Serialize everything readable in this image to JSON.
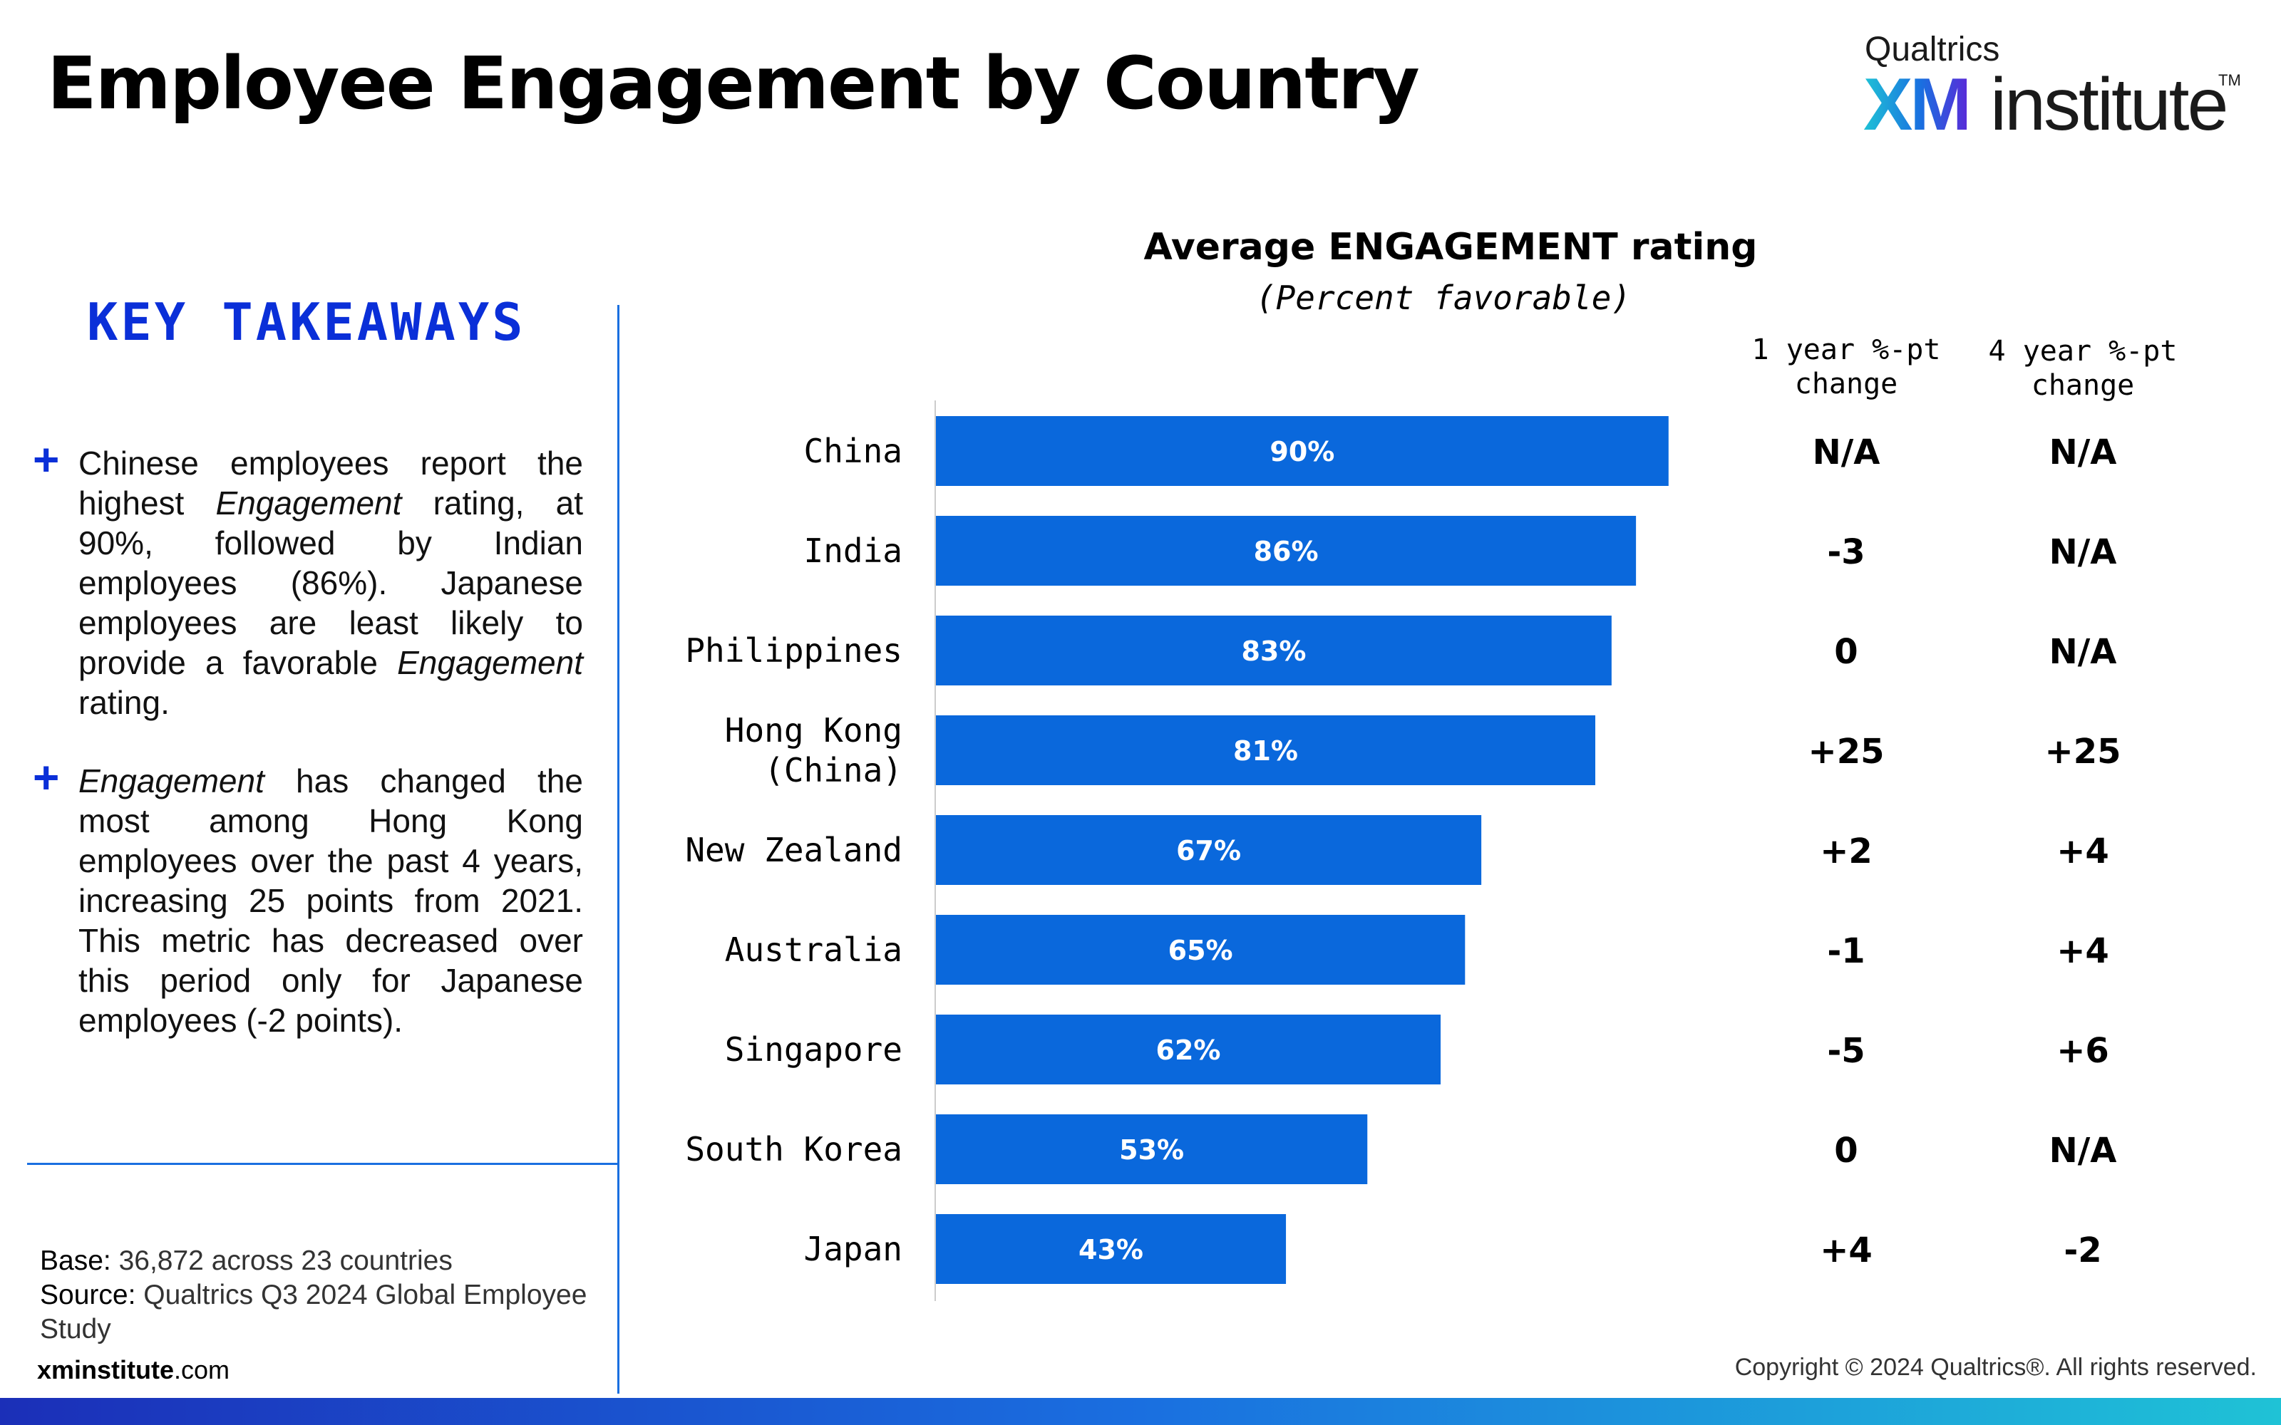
{
  "page": {
    "title": "Employee Engagement by Country",
    "logo": {
      "brand": "Qualtrics",
      "xm": "XM",
      "institute": "institute",
      "tm": "TM"
    },
    "colors": {
      "bar": "#0a68dc",
      "accent": "#0a2fd8",
      "line": "#1a6fe0"
    }
  },
  "takeaways": {
    "heading": "KEY TAKEAWAYS",
    "bullets": [
      {
        "parts": [
          "Chinese employees report the highest ",
          "Engagement",
          " rating, at 90%, followed by Indian employees (86%). Japanese employees are least likely to provide a favorable ",
          "Engagement",
          " rating."
        ]
      },
      {
        "parts": [
          "",
          "Engagement",
          " has changed the most among Hong Kong employees over the past 4 years, increasing 25 points from 2021. This metric has decreased over this period only for Japanese employees (-2 points)."
        ]
      }
    ]
  },
  "footer": {
    "base_label": "Base:",
    "base_value": " 36,872 across 23 countries",
    "source_label": "Source:",
    "source_value": " Qualtrics Q3 2024 Global Employee Study",
    "site_bold": "xminstitute",
    "site_rest": ".com",
    "copyright": "Copyright © 2024 Qualtrics®. All rights reserved."
  },
  "chart_data": {
    "type": "bar",
    "orientation": "horizontal",
    "title": "Average ENGAGEMENT rating",
    "subtitle": "(Percent favorable)",
    "categories": [
      "China",
      "India",
      "Philippines",
      "Hong Kong\n(China)",
      "New Zealand",
      "Australia",
      "Singapore",
      "South Korea",
      "Japan"
    ],
    "values": [
      90,
      86,
      83,
      81,
      67,
      65,
      62,
      53,
      43
    ],
    "value_labels": [
      "90%",
      "86%",
      "83%",
      "81%",
      "67%",
      "65%",
      "62%",
      "53%",
      "43%"
    ],
    "xlim": [
      0,
      100
    ],
    "grid": false,
    "columns": [
      {
        "header": [
          "1 year %-pt",
          "change"
        ],
        "values": [
          "N/A",
          "-3",
          "0",
          "+25",
          "+2",
          "-1",
          "-5",
          "0",
          "+4"
        ]
      },
      {
        "header": [
          "4 year %-pt",
          "change"
        ],
        "values": [
          "N/A",
          "N/A",
          "N/A",
          "+25",
          "+4",
          "+4",
          "+6",
          "N/A",
          "-2"
        ]
      }
    ]
  }
}
